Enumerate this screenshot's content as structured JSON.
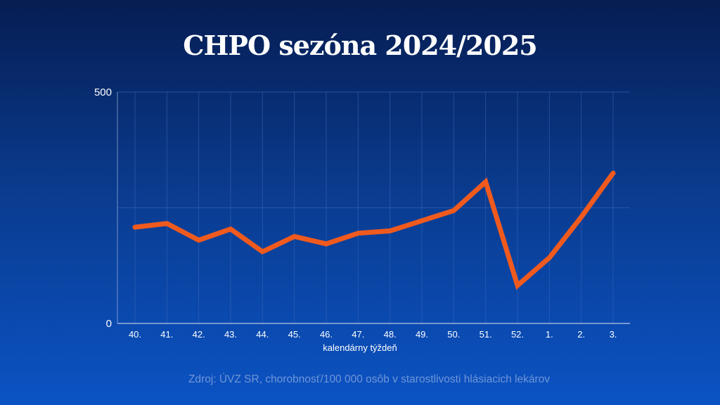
{
  "title": "CHPO sezóna 2024/2025",
  "source": "Zdroj: ÚVZ SR, chorobnosť/100 000 osôb v starostlivosti hlásiacich lekárov",
  "colors": {
    "line": "#f05a1e",
    "grid": "#3a66b8",
    "axis": "#b9c9ea",
    "text": "#ffffff"
  },
  "chart_data": {
    "type": "line",
    "title": "CHPO sezóna 2024/2025",
    "xlabel": "kalendárny týždeň",
    "ylabel": "",
    "categories": [
      "40.",
      "41.",
      "42.",
      "43.",
      "44.",
      "45.",
      "46.",
      "47.",
      "48.",
      "49.",
      "50.",
      "51.",
      "52.",
      "1.",
      "2.",
      "3."
    ],
    "yticks": [
      "0",
      "500"
    ],
    "ylim": [
      0,
      500
    ],
    "grid": true,
    "series": [
      {
        "values": [
          208,
          216,
          180,
          204,
          155,
          188,
          172,
          195,
          200,
          222,
          244,
          306,
          82,
          142,
          230,
          325
        ]
      }
    ]
  }
}
